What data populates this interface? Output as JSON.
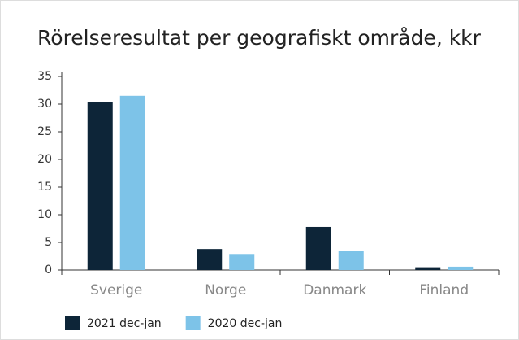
{
  "chart_data": {
    "type": "bar",
    "title": "Rörelseresultat per geografiskt område, kkr",
    "categories": [
      "Sverige",
      "Norge",
      "Danmark",
      "Finland"
    ],
    "series": [
      {
        "name": "2021 dec-jan",
        "color": "#0d2538",
        "values": [
          30.3,
          3.8,
          7.8,
          0.5
        ]
      },
      {
        "name": "2020 dec-jan",
        "color": "#7dc3e8",
        "values": [
          31.5,
          2.9,
          3.4,
          0.6
        ]
      }
    ],
    "ylim": [
      0,
      35
    ],
    "yticks": [
      0,
      5,
      10,
      15,
      20,
      25,
      30,
      35
    ],
    "legend": "bottom-left"
  }
}
